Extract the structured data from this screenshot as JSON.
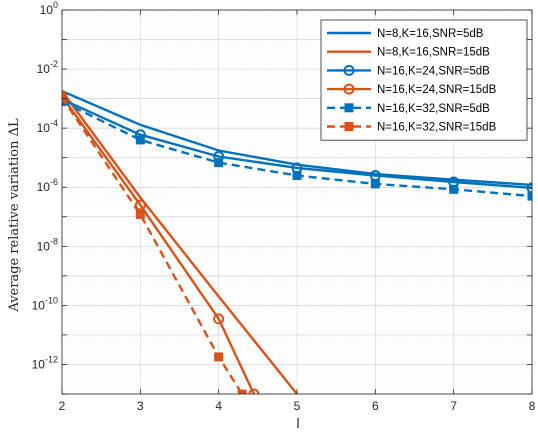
{
  "chart_data": {
    "type": "line",
    "title": "",
    "xlabel": "l",
    "ylabel": "Average relative variation ΔL",
    "xlim": [
      2,
      8
    ],
    "ylim_log10": [
      -13,
      0
    ],
    "yscale": "log",
    "grid": true,
    "legend_position": "top-right",
    "x_ticks": [
      "2",
      "3",
      "4",
      "5",
      "6",
      "7",
      "8"
    ],
    "y_ticks": [
      {
        "base": "10",
        "exp": "0"
      },
      {
        "base": "10",
        "exp": "-2"
      },
      {
        "base": "10",
        "exp": "-4"
      },
      {
        "base": "10",
        "exp": "-6"
      },
      {
        "base": "10",
        "exp": "-8"
      },
      {
        "base": "10",
        "exp": "-10"
      },
      {
        "base": "10",
        "exp": "-12"
      }
    ],
    "series": [
      {
        "name": "N=8,K=16,SNR=5dB",
        "color": "#0072BD",
        "dash": "solid",
        "marker": "none",
        "x": [
          2,
          3,
          4,
          5,
          6,
          7,
          8
        ],
        "y": [
          0.0018,
          0.00013,
          1.75e-05,
          5.8e-06,
          2.8e-06,
          1.8e-06,
          1.2e-06
        ]
      },
      {
        "name": "N=8,K=16,SNR=15dB",
        "color": "#D95319",
        "dash": "solid",
        "marker": "none",
        "x": [
          2,
          3,
          4,
          5
        ],
        "y": [
          0.0018,
          4.5e-07,
          2e-10,
          1e-13
        ]
      },
      {
        "name": "N=16,K=24,SNR=5dB",
        "color": "#0072BD",
        "dash": "solid",
        "marker": "circle",
        "x": [
          2,
          3,
          4,
          5,
          6,
          7,
          8
        ],
        "y": [
          0.00095,
          6e-05,
          1.1e-05,
          4.5e-06,
          2.5e-06,
          1.5e-06,
          9.5e-07
        ]
      },
      {
        "name": "N=16,K=24,SNR=15dB",
        "color": "#D95319",
        "dash": "solid",
        "marker": "circle",
        "x": [
          2,
          3,
          4,
          4.45
        ],
        "y": [
          0.0012,
          2.5e-07,
          3.5e-11,
          1e-13
        ]
      },
      {
        "name": "N=16,K=32,SNR=5dB",
        "color": "#0072BD",
        "dash": "dashed",
        "marker": "square",
        "x": [
          2,
          3,
          4,
          5,
          6,
          7,
          8
        ],
        "y": [
          0.0008,
          4e-05,
          6.8e-06,
          2.5e-06,
          1.3e-06,
          8.5e-07,
          5e-07
        ]
      },
      {
        "name": "N=16,K=32,SNR=15dB",
        "color": "#D95319",
        "dash": "dashed",
        "marker": "square",
        "x": [
          2,
          3,
          4,
          4.3
        ],
        "y": [
          0.0011,
          1.2e-07,
          1.8e-12,
          1e-13
        ]
      }
    ]
  }
}
